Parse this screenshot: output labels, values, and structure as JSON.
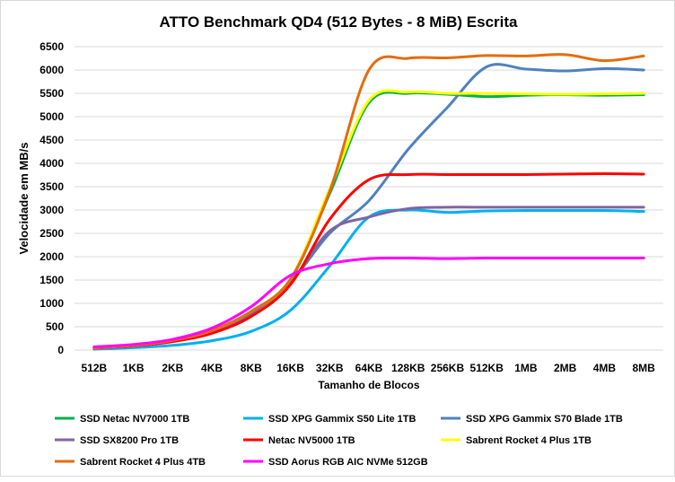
{
  "chart_data": {
    "type": "line",
    "title": "ATTO Benchmark QD4 (512 Bytes - 8 MiB) Escrita",
    "xlabel": "Tamanho de Blocos",
    "ylabel": "Velocidade em MB/s",
    "ylim": [
      0,
      6500
    ],
    "yticks": [
      0,
      500,
      1000,
      1500,
      2000,
      2500,
      3000,
      3500,
      4000,
      4500,
      5000,
      5500,
      6000,
      6500
    ],
    "grid": true,
    "legend": "bottom",
    "categories": [
      "512B",
      "1KB",
      "2KB",
      "4KB",
      "8KB",
      "16KB",
      "32KB",
      "64KB",
      "128KB",
      "256KB",
      "512KB",
      "1MB",
      "2MB",
      "4MB",
      "8MB"
    ],
    "series": [
      {
        "name": "SSD Netac NV7000 1TB",
        "color": "#00b050",
        "values": [
          50,
          100,
          200,
          400,
          800,
          1500,
          3350,
          5300,
          5500,
          5480,
          5430,
          5460,
          5470,
          5460,
          5470
        ]
      },
      {
        "name": "SSD XPG Gammix S50 Lite 1TB",
        "color": "#00b0f0",
        "values": [
          20,
          50,
          100,
          200,
          400,
          850,
          1800,
          2850,
          3000,
          2950,
          2980,
          2990,
          2990,
          2990,
          2970
        ]
      },
      {
        "name": "SSD XPG Gammix S70 Blade 1TB",
        "color": "#4f81bd",
        "values": [
          40,
          90,
          190,
          380,
          780,
          1450,
          2500,
          3200,
          4300,
          5200,
          6070,
          6020,
          5980,
          6030,
          6000
        ]
      },
      {
        "name": "SSD SX8200 Pro 1TB",
        "color": "#8064a2",
        "values": [
          40,
          90,
          190,
          390,
          790,
          1450,
          2550,
          2850,
          3030,
          3060,
          3060,
          3060,
          3060,
          3060,
          3060
        ]
      },
      {
        "name": "Netac NV5000 1TB",
        "color": "#ff0000",
        "values": [
          40,
          90,
          180,
          360,
          720,
          1400,
          2800,
          3650,
          3760,
          3760,
          3760,
          3760,
          3770,
          3780,
          3770
        ]
      },
      {
        "name": "Sabrent Rocket 4 Plus 1TB",
        "color": "#ffff00",
        "values": [
          50,
          100,
          210,
          420,
          830,
          1520,
          3450,
          5350,
          5530,
          5500,
          5500,
          5490,
          5480,
          5490,
          5500
        ]
      },
      {
        "name": "Sabrent Rocket 4 Plus 4TB",
        "color": "#e46c0a",
        "values": [
          50,
          100,
          210,
          420,
          830,
          1520,
          3400,
          6000,
          6250,
          6260,
          6310,
          6300,
          6330,
          6200,
          6300
        ]
      },
      {
        "name": "SSD Aorus RGB AIC NVMe 512GB",
        "color": "#ff00ff",
        "values": [
          70,
          120,
          230,
          470,
          930,
          1600,
          1850,
          1960,
          1970,
          1960,
          1970,
          1970,
          1970,
          1970,
          1970
        ]
      }
    ]
  }
}
